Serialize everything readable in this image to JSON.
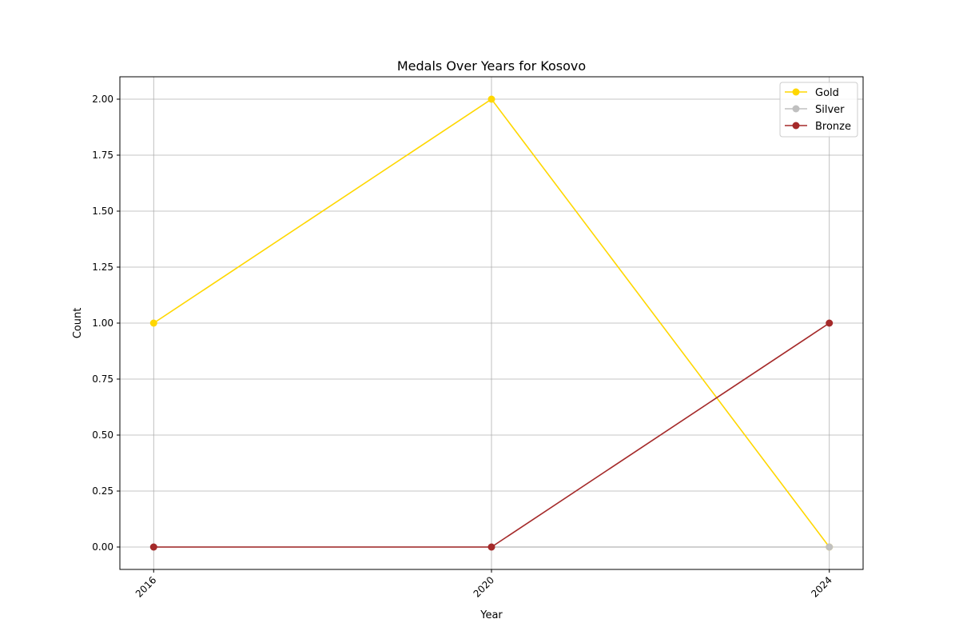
{
  "chart_data": {
    "type": "line",
    "title": "Medals Over Years for Kosovo",
    "xlabel": "Year",
    "ylabel": "Count",
    "x": [
      2016,
      2020,
      2024
    ],
    "x_tick_labels": [
      "2016",
      "2020",
      "2024"
    ],
    "xlim": [
      2015.6,
      2024.4
    ],
    "ylim": [
      -0.1,
      2.1
    ],
    "y_ticks": [
      0.0,
      0.25,
      0.5,
      0.75,
      1.0,
      1.25,
      1.5,
      1.75,
      2.0
    ],
    "y_tick_labels": [
      "0.00",
      "0.25",
      "0.50",
      "0.75",
      "1.00",
      "1.25",
      "1.50",
      "1.75",
      "2.00"
    ],
    "grid": true,
    "legend_position": "top-right",
    "series": [
      {
        "name": "Gold",
        "values": [
          1,
          2,
          0
        ],
        "color": "#ffd700"
      },
      {
        "name": "Silver",
        "values": [
          0,
          0,
          0
        ],
        "color": "#c0c0c0"
      },
      {
        "name": "Bronze",
        "values": [
          0,
          0,
          1
        ],
        "color": "#a52a2a"
      }
    ]
  }
}
